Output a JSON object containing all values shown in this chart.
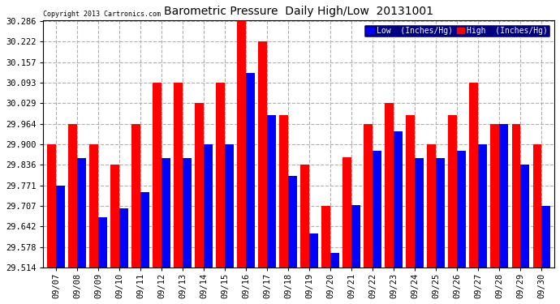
{
  "title": "Barometric Pressure  Daily High/Low  20131001",
  "copyright": "Copyright 2013 Cartronics.com",
  "legend_low": "Low  (Inches/Hg)",
  "legend_high": "High  (Inches/Hg)",
  "dates": [
    "09/07",
    "09/08",
    "09/09",
    "09/10",
    "09/11",
    "09/12",
    "09/13",
    "09/14",
    "09/15",
    "09/16",
    "09/17",
    "09/18",
    "09/19",
    "09/20",
    "09/21",
    "09/22",
    "09/23",
    "09/24",
    "09/25",
    "09/26",
    "09/27",
    "09/28",
    "09/29",
    "09/30"
  ],
  "low": [
    29.771,
    29.856,
    29.671,
    29.7,
    29.75,
    29.856,
    29.856,
    29.9,
    29.9,
    30.122,
    29.99,
    29.8,
    29.62,
    29.56,
    29.71,
    29.88,
    29.94,
    29.855,
    29.855,
    29.88,
    29.9,
    29.964,
    29.836,
    29.707
  ],
  "high": [
    29.9,
    29.964,
    29.9,
    29.836,
    29.964,
    30.093,
    30.093,
    30.029,
    30.093,
    30.286,
    30.222,
    29.99,
    29.836,
    29.707,
    29.86,
    29.964,
    30.029,
    29.99,
    29.9,
    29.99,
    30.093,
    29.964,
    29.964,
    29.9
  ],
  "ymin": 29.514,
  "ymax": 30.286,
  "yticks": [
    29.514,
    29.578,
    29.642,
    29.707,
    29.771,
    29.836,
    29.9,
    29.964,
    30.029,
    30.093,
    30.157,
    30.222,
    30.286
  ],
  "bg_color": "#ffffff",
  "low_color": "#0000ff",
  "high_color": "#ff0000",
  "grid_color": "#b0b0b0",
  "title_color": "#000000",
  "copyright_color": "#000000",
  "legend_bg": "#000080"
}
